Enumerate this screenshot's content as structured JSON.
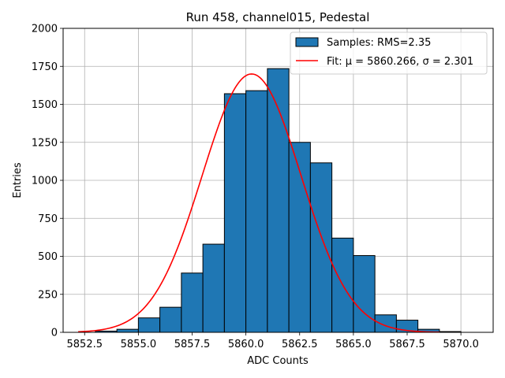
{
  "chart_data": {
    "type": "bar",
    "title": "Run 458, channel015, Pedestal",
    "xlabel": "ADC Counts",
    "ylabel": "Entries",
    "xlim": [
      5851.5,
      5871.5
    ],
    "ylim": [
      0,
      2000
    ],
    "xticks": [
      5852.5,
      5855.0,
      5857.5,
      5860.0,
      5862.5,
      5865.0,
      5867.5,
      5870.0
    ],
    "xtick_labels": [
      "5852.5",
      "5855.0",
      "5857.5",
      "5860.0",
      "5862.5",
      "5865.0",
      "5867.5",
      "5870.0"
    ],
    "yticks": [
      0,
      250,
      500,
      750,
      1000,
      1250,
      1500,
      1750,
      2000
    ],
    "ytick_labels": [
      "0",
      "250",
      "500",
      "750",
      "1000",
      "1250",
      "1500",
      "1750",
      "2000"
    ],
    "grid": true,
    "legend_position": "top-right",
    "bin_width": 1,
    "bins": [
      {
        "x0": 5853,
        "value": 8
      },
      {
        "x0": 5854,
        "value": 20
      },
      {
        "x0": 5855,
        "value": 95
      },
      {
        "x0": 5856,
        "value": 165
      },
      {
        "x0": 5857,
        "value": 390
      },
      {
        "x0": 5858,
        "value": 580
      },
      {
        "x0": 5859,
        "value": 1570
      },
      {
        "x0": 5860,
        "value": 1590
      },
      {
        "x0": 5861,
        "value": 1735
      },
      {
        "x0": 5862,
        "value": 1250
      },
      {
        "x0": 5863,
        "value": 1115
      },
      {
        "x0": 5864,
        "value": 620
      },
      {
        "x0": 5865,
        "value": 505
      },
      {
        "x0": 5866,
        "value": 115
      },
      {
        "x0": 5867,
        "value": 80
      },
      {
        "x0": 5868,
        "value": 20
      },
      {
        "x0": 5869,
        "value": 5
      }
    ],
    "fit": {
      "mu": 5860.266,
      "sigma": 2.301,
      "amplitude": 1700,
      "x_range": [
        5852.2,
        5869.0
      ]
    },
    "series": [
      {
        "name": "Samples: RMS=2.35",
        "color": "#1f77b4",
        "kind": "histogram"
      },
      {
        "name": "Fit: μ = 5860.266, σ = 2.301",
        "color": "#ff0000",
        "kind": "line"
      }
    ]
  }
}
